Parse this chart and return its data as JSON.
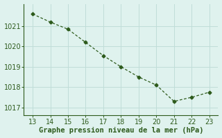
{
  "x": [
    13,
    14,
    15,
    16,
    17,
    18,
    19,
    20,
    21,
    22,
    23
  ],
  "y": [
    1021.6,
    1021.2,
    1020.85,
    1020.2,
    1019.55,
    1019.0,
    1018.5,
    1018.1,
    1017.3,
    1017.5,
    1017.75
  ],
  "line_color": "#2d5a1b",
  "marker": "D",
  "marker_size": 2.5,
  "bg_color": "#dff2ee",
  "grid_color": "#c0ddd8",
  "xlabel": "Graphe pression niveau de la mer (hPa)",
  "xlabel_color": "#2d5a1b",
  "tick_color": "#2d5a1b",
  "spine_color": "#2d5a1b",
  "xlim": [
    12.5,
    23.5
  ],
  "ylim": [
    1016.6,
    1022.1
  ],
  "xticks": [
    13,
    14,
    15,
    16,
    17,
    18,
    19,
    20,
    21,
    22,
    23
  ],
  "yticks": [
    1017,
    1018,
    1019,
    1020,
    1021
  ],
  "xlabel_fontsize": 7.5,
  "tick_fontsize": 7
}
